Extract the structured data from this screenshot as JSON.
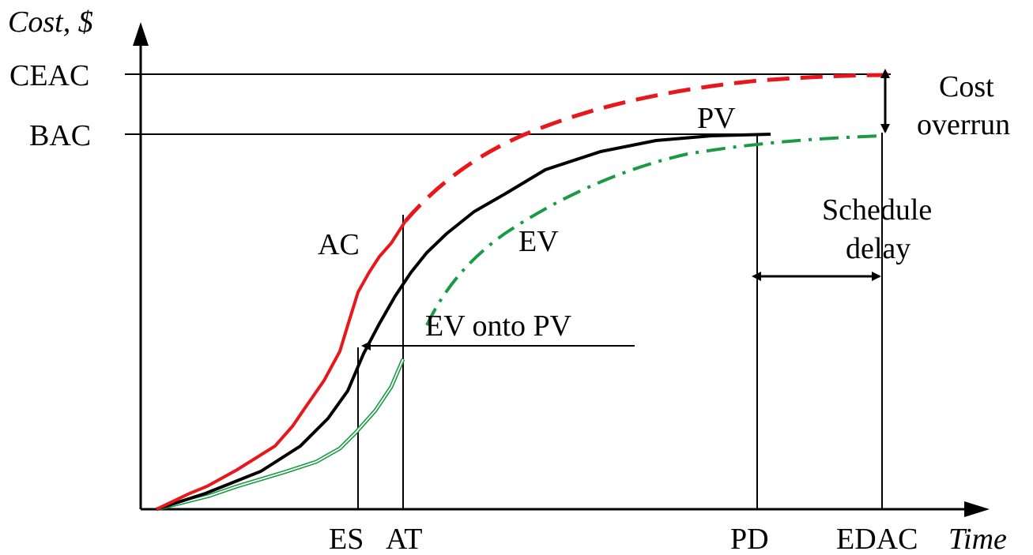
{
  "axes": {
    "y_label": "Cost, $",
    "x_label": "Time"
  },
  "y_levels": {
    "ceac": "CEAC",
    "bac": "BAC"
  },
  "x_marks": {
    "es": "ES",
    "at": "AT",
    "pd": "PD",
    "edac": "EDAC"
  },
  "curves": {
    "pv": "PV",
    "ac": "AC",
    "ev": "EV",
    "ev_onto_pv": "EV onto PV"
  },
  "annotations": {
    "cost_overrun_line1": "Cost",
    "cost_overrun_line2": "overrun",
    "schedule_delay_line1": "Schedule",
    "schedule_delay_line2": "delay"
  },
  "colors": {
    "pv": "#000000",
    "ac": "#e8171b",
    "ac_forecast": "#e8171b",
    "ev": "#1a9a45"
  }
}
